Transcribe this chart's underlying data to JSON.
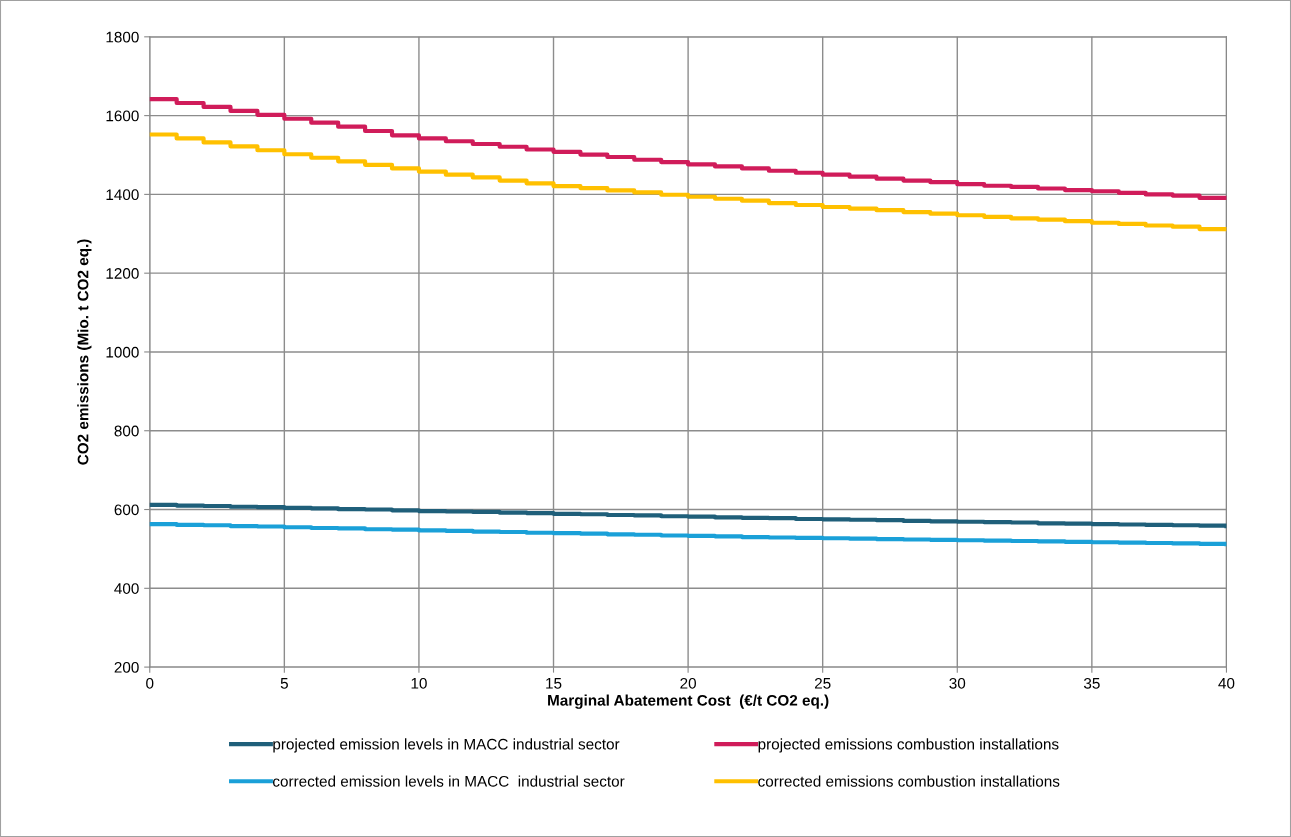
{
  "chart_data": {
    "type": "step",
    "xlabel": "Marginal Abatement Cost  (€/t CO2 eq.)",
    "ylabel": "CO2 emissions (Mio. t CO2 eq.)",
    "x": [
      0,
      1,
      2,
      3,
      4,
      5,
      6,
      7,
      8,
      9,
      10,
      11,
      12,
      13,
      14,
      15,
      16,
      17,
      18,
      19,
      20,
      21,
      22,
      23,
      24,
      25,
      26,
      27,
      28,
      29,
      30,
      31,
      32,
      33,
      34,
      35,
      36,
      37,
      38,
      39,
      40
    ],
    "series": [
      {
        "name": "projected emission levels in MACC industrial sector",
        "color": "#1f5f7a",
        "values": [
          612,
          610,
          609,
          607,
          606,
          604,
          603,
          601,
          600,
          598,
          596,
          595,
          594,
          592,
          591,
          589,
          588,
          586,
          585,
          583,
          582,
          580,
          579,
          578,
          576,
          575,
          574,
          573,
          571,
          570,
          569,
          568,
          567,
          565,
          564,
          563,
          562,
          561,
          560,
          559,
          558
        ]
      },
      {
        "name": "corrected emission levels in MACC  industrial sector",
        "color": "#1aa0d8",
        "values": [
          563,
          561,
          560,
          558,
          557,
          555,
          553,
          552,
          550,
          549,
          547,
          546,
          544,
          543,
          541,
          540,
          539,
          537,
          536,
          534,
          533,
          532,
          530,
          529,
          528,
          527,
          526,
          525,
          524,
          523,
          522,
          521,
          520,
          519,
          518,
          517,
          516,
          515,
          514,
          513,
          512
        ]
      },
      {
        "name": "projected emissions combustion installations",
        "color": "#d01c5a",
        "values": [
          1642,
          1632,
          1622,
          1612,
          1602,
          1592,
          1582,
          1572,
          1561,
          1550,
          1542,
          1535,
          1528,
          1521,
          1514,
          1508,
          1501,
          1495,
          1488,
          1482,
          1476,
          1471,
          1466,
          1460,
          1455,
          1450,
          1445,
          1440,
          1435,
          1431,
          1426,
          1422,
          1419,
          1415,
          1411,
          1408,
          1404,
          1400,
          1397,
          1391,
          1391
        ]
      },
      {
        "name": "corrected emissions combustion installations",
        "color": "#ffc000",
        "values": [
          1552,
          1542,
          1532,
          1522,
          1512,
          1502,
          1493,
          1484,
          1475,
          1466,
          1458,
          1450,
          1443,
          1435,
          1428,
          1421,
          1416,
          1410,
          1405,
          1399,
          1394,
          1389,
          1384,
          1378,
          1373,
          1368,
          1364,
          1360,
          1355,
          1351,
          1347,
          1343,
          1339,
          1336,
          1332,
          1328,
          1325,
          1321,
          1318,
          1312,
          1312
        ]
      }
    ],
    "xlim": [
      0,
      40
    ],
    "xticks": [
      0,
      5,
      10,
      15,
      20,
      25,
      30,
      35,
      40
    ],
    "ylim": [
      200,
      1800
    ],
    "yticks": [
      200,
      400,
      600,
      800,
      1000,
      1200,
      1400,
      1600,
      1800
    ],
    "grid": true,
    "legend": "bottom",
    "line_style": "solid",
    "marker": "none"
  }
}
